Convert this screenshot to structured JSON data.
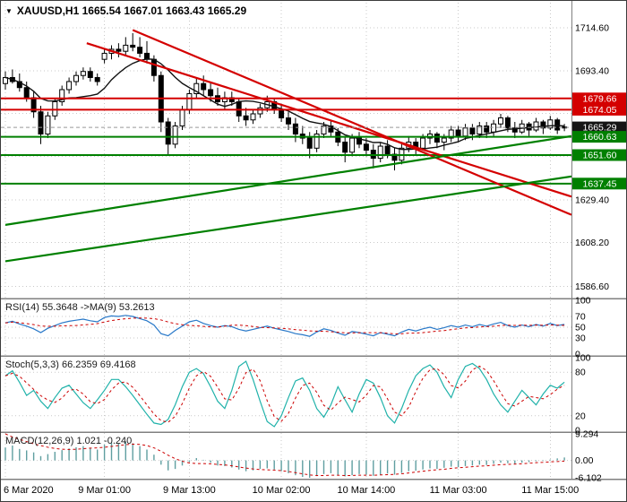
{
  "window": {
    "symbol": "XAUUSD",
    "timeframe": "H1"
  },
  "colors": {
    "background": "#ffffff",
    "grid": "#c9c9c9",
    "candle": "#000000",
    "resistance": "#d40000",
    "support": "#008000",
    "current_price_box": "#151515",
    "rsi_line": "#2878c8",
    "stoch_line": "#20b2aa",
    "macd_bar": "#5f9ea0",
    "signal_line": "#cc0000"
  },
  "chart_data": [
    {
      "type": "candlestick",
      "title": "XAUUSD,H1 main price chart",
      "marker": "▼",
      "legend": "XAUUSD,H1 1665.54 1667.01 1663.43 1665.29",
      "ohlc_current": {
        "open": 1665.54,
        "high": 1667.01,
        "low": 1663.43,
        "close": 1665.29
      },
      "y_range": [
        1583.2,
        1724.4
      ],
      "y_ticks": [
        {
          "v": 1714.6,
          "t": "1714.60"
        },
        {
          "v": 1693.4,
          "t": "1693.40"
        },
        {
          "v": 1672.2,
          "t": "1672.20",
          "hide": true
        },
        {
          "v": 1651.0,
          "t": "1651.00",
          "hide": true
        },
        {
          "v": 1629.4,
          "t": "1629.40"
        },
        {
          "v": 1608.2,
          "t": "1608.20"
        },
        {
          "v": 1586.6,
          "t": "1586.60"
        }
      ],
      "time_labels": [
        {
          "i": 0,
          "t": "6 Mar 2020"
        },
        {
          "i": 14,
          "t": "9 Mar 01:00"
        },
        {
          "i": 26,
          "t": "9 Mar 13:00"
        },
        {
          "i": 39,
          "t": "10 Mar 02:00"
        },
        {
          "i": 51,
          "t": "10 Mar 14:00"
        },
        {
          "i": 64,
          "t": "11 Mar 03:00"
        },
        {
          "i": 77,
          "t": "11 Mar 15:00"
        }
      ],
      "horizontal_lines": [
        {
          "v": 1679.66,
          "c": "#d40000"
        },
        {
          "v": 1674.05,
          "c": "#d40000"
        },
        {
          "v": 1660.63,
          "c": "#008000"
        },
        {
          "v": 1651.6,
          "c": "#008000"
        },
        {
          "v": 1637.45,
          "c": "#008000"
        }
      ],
      "trend_lines": [
        {
          "i1": 11.5,
          "p1": 1707.0,
          "i2": 80,
          "p2": 1631.0,
          "c": "#d40000"
        },
        {
          "i1": 18,
          "p1": 1713.5,
          "i2": 80,
          "p2": 1622.0,
          "c": "#d40000"
        },
        {
          "i1": 0,
          "p1": 1617.0,
          "i2": 80,
          "p2": 1661.0,
          "c": "#008000"
        },
        {
          "i1": 0,
          "p1": 1599.0,
          "i2": 80,
          "p2": 1641.0,
          "c": "#008000"
        }
      ],
      "price_labels": [
        {
          "v": 1679.66,
          "t": "1679.66",
          "c": "#d40000"
        },
        {
          "v": 1674.05,
          "t": "1674.05",
          "c": "#d40000"
        },
        {
          "v": 1665.29,
          "t": "1665.29",
          "c": "#151515"
        },
        {
          "v": 1660.63,
          "t": "1660.63",
          "c": "#008000"
        },
        {
          "v": 1651.6,
          "t": "1651.60",
          "c": "#008000"
        },
        {
          "v": 1637.45,
          "t": "1637.45",
          "c": "#008000"
        }
      ],
      "current_price": 1665.29,
      "ma_period": 10,
      "ohlc": [
        [
          1687,
          1693,
          1684,
          1690
        ],
        [
          1690,
          1694,
          1687,
          1688
        ],
        [
          1688,
          1692,
          1683,
          1685
        ],
        [
          1685,
          1688,
          1678,
          1680
        ],
        [
          1680,
          1683,
          1670,
          1673
        ],
        [
          1673,
          1676,
          1657,
          1662
        ],
        [
          1662,
          1673,
          1660,
          1671
        ],
        [
          1671,
          1680,
          1669,
          1678
        ],
        [
          1678,
          1686,
          1676,
          1684
        ],
        [
          1684,
          1690,
          1682,
          1688
        ],
        [
          1688,
          1693,
          1686,
          1691
        ],
        [
          1691,
          1695,
          1689,
          1693
        ],
        [
          1693,
          1695,
          1688,
          1690
        ],
        [
          1690,
          1692,
          1686,
          1688
        ],
        [
          1699,
          1704,
          1697,
          1702
        ],
        [
          1702,
          1706,
          1699,
          1704
        ],
        [
          1704,
          1707,
          1700,
          1703
        ],
        [
          1703,
          1710,
          1701,
          1706
        ],
        [
          1706,
          1712,
          1703,
          1705
        ],
        [
          1705,
          1710,
          1700,
          1702
        ],
        [
          1702,
          1708,
          1697,
          1699
        ],
        [
          1699,
          1701,
          1688,
          1691
        ],
        [
          1691,
          1693,
          1663,
          1668
        ],
        [
          1668,
          1670,
          1652,
          1657
        ],
        [
          1657,
          1668,
          1655,
          1666
        ],
        [
          1666,
          1676,
          1664,
          1674
        ],
        [
          1674,
          1684,
          1672,
          1682
        ],
        [
          1682,
          1690,
          1680,
          1687
        ],
        [
          1687,
          1691,
          1681,
          1684
        ],
        [
          1684,
          1688,
          1678,
          1681
        ],
        [
          1681,
          1685,
          1676,
          1678
        ],
        [
          1678,
          1683,
          1674,
          1680
        ],
        [
          1680,
          1683,
          1676,
          1678
        ],
        [
          1678,
          1680,
          1668,
          1671
        ],
        [
          1671,
          1675,
          1666,
          1669
        ],
        [
          1669,
          1674,
          1667,
          1672
        ],
        [
          1672,
          1677,
          1670,
          1675
        ],
        [
          1675,
          1681,
          1673,
          1678
        ],
        [
          1678,
          1680,
          1672,
          1674
        ],
        [
          1674,
          1677,
          1668,
          1670
        ],
        [
          1670,
          1673,
          1664,
          1667
        ],
        [
          1667,
          1670,
          1658,
          1662
        ],
        [
          1662,
          1666,
          1657,
          1660
        ],
        [
          1660,
          1663,
          1650,
          1655
        ],
        [
          1655,
          1664,
          1653,
          1662
        ],
        [
          1662,
          1668,
          1660,
          1666
        ],
        [
          1666,
          1669,
          1661,
          1663
        ],
        [
          1663,
          1665,
          1656,
          1658
        ],
        [
          1658,
          1661,
          1648,
          1653
        ],
        [
          1653,
          1662,
          1651,
          1660
        ],
        [
          1660,
          1663,
          1655,
          1657
        ],
        [
          1657,
          1660,
          1651,
          1654
        ],
        [
          1654,
          1657,
          1645,
          1650
        ],
        [
          1650,
          1658,
          1648,
          1656
        ],
        [
          1656,
          1659,
          1650,
          1652
        ],
        [
          1652,
          1655,
          1644,
          1649
        ],
        [
          1649,
          1657,
          1647,
          1655
        ],
        [
          1655,
          1661,
          1653,
          1658
        ],
        [
          1658,
          1660,
          1652,
          1655
        ],
        [
          1655,
          1662,
          1654,
          1660
        ],
        [
          1660,
          1664,
          1657,
          1662
        ],
        [
          1662,
          1663,
          1655,
          1658
        ],
        [
          1658,
          1662,
          1654,
          1660
        ],
        [
          1660,
          1666,
          1658,
          1664
        ],
        [
          1664,
          1666,
          1658,
          1661
        ],
        [
          1661,
          1667,
          1659,
          1665
        ],
        [
          1665,
          1667,
          1659,
          1662
        ],
        [
          1662,
          1668,
          1660,
          1666
        ],
        [
          1666,
          1668,
          1660,
          1663
        ],
        [
          1663,
          1669,
          1661,
          1667
        ],
        [
          1667,
          1672,
          1665,
          1670
        ],
        [
          1670,
          1671,
          1663,
          1665
        ],
        [
          1665,
          1668,
          1660,
          1663
        ],
        [
          1663,
          1669,
          1662,
          1667
        ],
        [
          1667,
          1668,
          1661,
          1664
        ],
        [
          1664,
          1670,
          1663,
          1668
        ],
        [
          1668,
          1669,
          1662,
          1665
        ],
        [
          1665,
          1671,
          1664,
          1669
        ],
        [
          1669,
          1670,
          1662,
          1664
        ],
        [
          1665.54,
          1667.01,
          1663.43,
          1665.29
        ]
      ]
    },
    {
      "type": "line",
      "name": "RSI",
      "label": "RSI(14) 55.3648  ->MA(9) 53.2613",
      "value": 55.3648,
      "signal_value": 53.2613,
      "signal_period": 9,
      "range": [
        0,
        100
      ],
      "ticks": [
        {
          "v": 100,
          "t": "100"
        },
        {
          "v": 70,
          "t": "70",
          "grid": true
        },
        {
          "v": 50,
          "t": "50",
          "grid": true
        },
        {
          "v": 30,
          "t": "30",
          "grid": true
        },
        {
          "v": 0,
          "t": "0"
        }
      ],
      "values": [
        58,
        61,
        56,
        52,
        47,
        40,
        48,
        53,
        58,
        61,
        63,
        65,
        62,
        60,
        68,
        71,
        70,
        72,
        70,
        66,
        62,
        54,
        38,
        34,
        44,
        52,
        60,
        63,
        57,
        53,
        50,
        53,
        51,
        46,
        43,
        46,
        49,
        52,
        48,
        45,
        42,
        38,
        36,
        33,
        41,
        47,
        44,
        39,
        35,
        42,
        40,
        37,
        34,
        40,
        37,
        34,
        41,
        46,
        43,
        47,
        50,
        46,
        49,
        53,
        50,
        54,
        51,
        55,
        52,
        56,
        59,
        53,
        50,
        54,
        51,
        55,
        52,
        57,
        53,
        55.36
      ]
    },
    {
      "type": "line",
      "name": "Stochastic",
      "label": "Stoch(5,3,3) 66.2359 69.4168",
      "value": 66.2359,
      "signal_value": 69.4168,
      "signal_period": 3,
      "range": [
        0,
        100
      ],
      "ticks": [
        {
          "v": 100,
          "t": "100"
        },
        {
          "v": 80,
          "t": "80",
          "grid": true
        },
        {
          "v": 20,
          "t": "20",
          "grid": true
        },
        {
          "v": 0,
          "t": "0"
        }
      ],
      "values": [
        75,
        82,
        66,
        48,
        55,
        40,
        30,
        45,
        58,
        62,
        50,
        38,
        30,
        42,
        55,
        70,
        70,
        60,
        48,
        35,
        22,
        10,
        8,
        15,
        35,
        60,
        80,
        85,
        78,
        60,
        40,
        30,
        55,
        88,
        95,
        70,
        40,
        12,
        5,
        20,
        45,
        68,
        72,
        55,
        30,
        18,
        35,
        60,
        42,
        25,
        50,
        70,
        65,
        45,
        20,
        10,
        30,
        55,
        75,
        85,
        90,
        80,
        60,
        45,
        70,
        88,
        92,
        85,
        70,
        50,
        35,
        25,
        40,
        55,
        45,
        35,
        50,
        62,
        58,
        66.24
      ]
    },
    {
      "type": "macd",
      "name": "MACD",
      "label": "MACD(12,26,9) 1.021 -0.240",
      "value": 1.021,
      "signal_value": -0.24,
      "range": [
        -6.102,
        9.294
      ],
      "ticks": [
        {
          "v": 9.294,
          "t": "9.294"
        },
        {
          "v": 0,
          "t": "0.00",
          "grid": true
        },
        {
          "v": -6.102,
          "t": "-6.102"
        }
      ],
      "values": [
        4.5,
        5.2,
        4.0,
        3.5,
        2.8,
        1.5,
        2.2,
        3.0,
        3.6,
        4.2,
        4.6,
        5.0,
        4.4,
        3.8,
        5.5,
        6.2,
        6.0,
        6.5,
        6.0,
        5.0,
        3.8,
        2.0,
        -1.5,
        -3.5,
        -3.0,
        -1.8,
        -0.5,
        0.8,
        0.2,
        -0.8,
        -1.8,
        -2.0,
        -2.5,
        -3.2,
        -3.8,
        -3.5,
        -3.0,
        -2.8,
        -3.2,
        -3.8,
        -4.5,
        -5.2,
        -5.8,
        -6.102,
        -5.5,
        -4.8,
        -4.5,
        -5.0,
        -5.6,
        -5.2,
        -4.8,
        -5.0,
        -5.4,
        -5.0,
        -4.6,
        -5.0,
        -4.4,
        -3.8,
        -3.6,
        -3.2,
        -2.8,
        -3.0,
        -2.6,
        -2.2,
        -2.4,
        -2.0,
        -1.8,
        -1.5,
        -1.6,
        -1.2,
        -0.8,
        -1.0,
        -1.2,
        -0.8,
        -0.6,
        -0.3,
        -0.2,
        0.3,
        0.7,
        1.021
      ],
      "signal": [
        9.294,
        8.2,
        7.4,
        6.6,
        5.8,
        5.2,
        4.6,
        4.2,
        3.9,
        3.8,
        3.9,
        4.1,
        4.3,
        4.4,
        4.6,
        4.9,
        5.2,
        5.5,
        5.7,
        5.6,
        5.2,
        4.4,
        3.2,
        1.8,
        0.6,
        -0.3,
        -0.9,
        -1.1,
        -1.1,
        -1.2,
        -1.4,
        -1.6,
        -1.9,
        -2.3,
        -2.7,
        -3.0,
        -3.2,
        -3.3,
        -3.4,
        -3.6,
        -3.9,
        -4.3,
        -4.7,
        -5.1,
        -5.3,
        -5.3,
        -5.2,
        -5.2,
        -5.3,
        -5.3,
        -5.2,
        -5.2,
        -5.2,
        -5.1,
        -5.0,
        -4.9,
        -4.7,
        -4.4,
        -4.1,
        -3.8,
        -3.5,
        -3.3,
        -3.1,
        -2.8,
        -2.6,
        -2.4,
        -2.2,
        -2.0,
        -1.9,
        -1.7,
        -1.5,
        -1.4,
        -1.3,
        -1.2,
        -1.0,
        -0.8,
        -0.7,
        -0.5,
        -0.4,
        -0.24
      ]
    }
  ]
}
